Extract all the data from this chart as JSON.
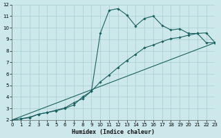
{
  "xlabel": "Humidex (Indice chaleur)",
  "bg_color": "#cce8ea",
  "grid_color": "#a8cdd0",
  "line_color": "#1a6060",
  "xlim": [
    0,
    23
  ],
  "ylim": [
    2,
    12
  ],
  "xticks": [
    0,
    1,
    2,
    3,
    4,
    5,
    6,
    7,
    8,
    9,
    10,
    11,
    12,
    13,
    14,
    15,
    16,
    17,
    18,
    19,
    20,
    21,
    22,
    23
  ],
  "yticks": [
    2,
    3,
    4,
    5,
    6,
    7,
    8,
    9,
    10,
    11,
    12
  ],
  "curve1_x": [
    0,
    1,
    2,
    3,
    4,
    5,
    6,
    7,
    8,
    9,
    10,
    11,
    12,
    13,
    14,
    15,
    16,
    17,
    18,
    19,
    20,
    21,
    22,
    23
  ],
  "curve1_y": [
    2.0,
    2.1,
    2.25,
    2.5,
    2.65,
    2.8,
    3.0,
    3.3,
    4.0,
    4.5,
    9.5,
    11.5,
    11.65,
    11.1,
    10.15,
    10.8,
    11.0,
    10.2,
    9.8,
    9.9,
    9.5,
    9.5,
    8.7,
    8.7
  ],
  "curve2_x": [
    0,
    1,
    2,
    3,
    4,
    5,
    6,
    7,
    8,
    9,
    10,
    11,
    12,
    13,
    14,
    15,
    16,
    17,
    18,
    19,
    20,
    21,
    22,
    23
  ],
  "curve2_y": [
    2.0,
    2.1,
    2.2,
    2.5,
    2.65,
    2.85,
    3.05,
    3.5,
    3.85,
    4.5,
    5.3,
    5.9,
    6.55,
    7.15,
    7.7,
    8.25,
    8.5,
    8.8,
    9.05,
    9.15,
    9.35,
    9.5,
    9.55,
    8.7
  ],
  "curve3_x": [
    0,
    23
  ],
  "curve3_y": [
    2.0,
    8.7
  ]
}
